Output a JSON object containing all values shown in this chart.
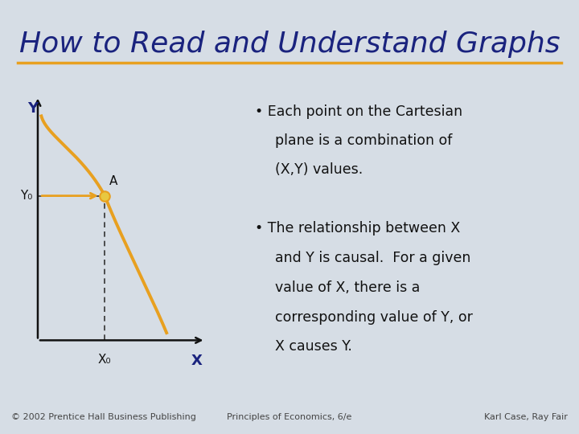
{
  "title": "How to Read and Understand Graphs",
  "title_color": "#1a237e",
  "title_fontsize": 26,
  "background_color": "#d6dde5",
  "divider_color": "#e8a020",
  "bullet1_line1": "Each point on the Cartesian",
  "bullet1_line2": "plane is a combination of",
  "bullet1_line3": "(X,Y) values.",
  "bullet2_line1": "The relationship between X",
  "bullet2_line2": "and Y is causal.  For a given",
  "bullet2_line3": "value of X, there is a",
  "bullet2_line4": "corresponding value of Y, or",
  "bullet2_line5": "X causes Y.",
  "footer_left": "© 2002 Prentice Hall Business Publishing",
  "footer_center": "Principles of Economics, 6/e",
  "footer_right": "Karl Case, Ray Fair",
  "curve_color": "#e8a020",
  "dashed_color": "#333333",
  "point_color": "#e8c840",
  "axis_color": "#111111",
  "label_color": "#111111",
  "text_color": "#1a237e",
  "bullet_color": "#111111",
  "bullet_size": 12.5,
  "footer_size": 8
}
